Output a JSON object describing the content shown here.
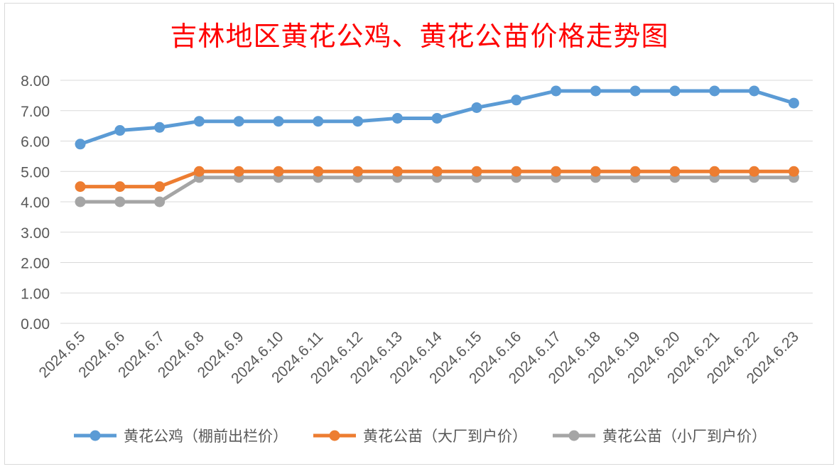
{
  "chart_data": {
    "type": "line",
    "title": "吉林地区黄花公鸡、黄花公苗价格走势图",
    "categories": [
      "2024.6.5",
      "2024.6.6",
      "2024.6.7",
      "2024.6.8",
      "2024.6.9",
      "2024.6.10",
      "2024.6.11",
      "2024.6.12",
      "2024.6.13",
      "2024.6.14",
      "2024.6.15",
      "2024.6.16",
      "2024.6.17",
      "2024.6.18",
      "2024.6.19",
      "2024.6.20",
      "2024.6.21",
      "2024.6.22",
      "2024.6.23"
    ],
    "y_ticks": [
      "0.00",
      "1.00",
      "2.00",
      "3.00",
      "4.00",
      "5.00",
      "6.00",
      "7.00",
      "8.00"
    ],
    "ylim": [
      0,
      8
    ],
    "grid": true,
    "legend_position": "bottom",
    "series": [
      {
        "name": "黄花公鸡（棚前出栏价）",
        "color": "#5b9bd5",
        "values": [
          5.9,
          6.35,
          6.45,
          6.65,
          6.65,
          6.65,
          6.65,
          6.65,
          6.75,
          6.75,
          7.1,
          7.35,
          7.65,
          7.65,
          7.65,
          7.65,
          7.65,
          7.65,
          7.25
        ]
      },
      {
        "name": "黄花公苗（大厂到户价）",
        "color": "#ed7d31",
        "values": [
          4.5,
          4.5,
          4.5,
          5.0,
          5.0,
          5.0,
          5.0,
          5.0,
          5.0,
          5.0,
          5.0,
          5.0,
          5.0,
          5.0,
          5.0,
          5.0,
          5.0,
          5.0,
          5.0
        ]
      },
      {
        "name": "黄花公苗（小厂到户价）",
        "color": "#a5a5a5",
        "values": [
          4.0,
          4.0,
          4.0,
          4.8,
          4.8,
          4.8,
          4.8,
          4.8,
          4.8,
          4.8,
          4.8,
          4.8,
          4.8,
          4.8,
          4.8,
          4.8,
          4.8,
          4.8,
          4.8
        ]
      }
    ]
  }
}
